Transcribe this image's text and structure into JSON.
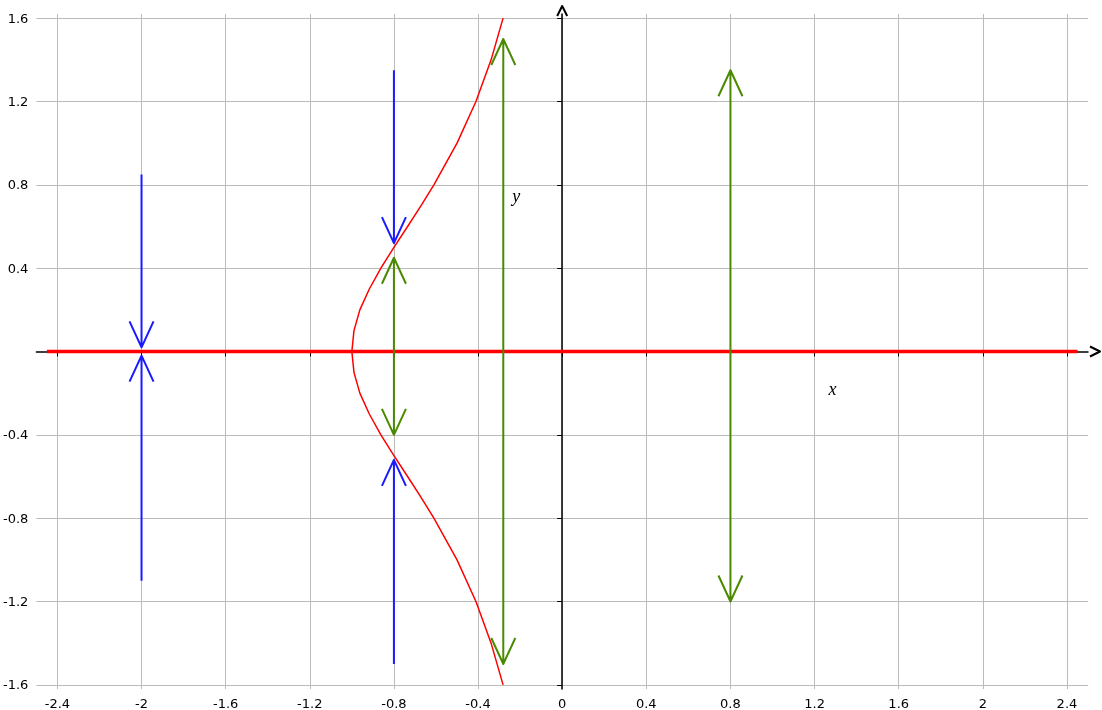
{
  "chart_data": {
    "type": "line",
    "xlabel": "x",
    "ylabel": "y",
    "xlim": [
      -2.5,
      2.5
    ],
    "ylim": [
      -1.62,
      1.62
    ],
    "xticks": [
      -2.4,
      -2,
      -1.6,
      -1.2,
      -0.8,
      -0.4,
      0,
      0.4,
      0.8,
      1.2,
      1.6,
      2,
      2.4
    ],
    "yticks": [
      -1.6,
      -1.2,
      -0.8,
      -0.4,
      0.4,
      0.8,
      1.2,
      1.6
    ],
    "grid": true,
    "series": [
      {
        "color": "#ff0000",
        "x": [
          -0.281,
          -0.338,
          -0.41,
          -0.5,
          -0.61,
          -0.671,
          -0.735,
          -0.8,
          -0.862,
          -0.917,
          -0.962,
          -0.99,
          -1,
          -0.99,
          -0.962,
          -0.917,
          -0.862,
          -0.8,
          -0.735,
          -0.671,
          -0.61,
          -0.5,
          -0.41,
          -0.338,
          -0.281
        ],
        "values": [
          -1.6,
          -1.4,
          -1.2,
          -1,
          -0.8,
          -0.7,
          -0.6,
          -0.5,
          -0.4,
          -0.3,
          -0.2,
          -0.1,
          0,
          0.1,
          0.2,
          0.3,
          0.4,
          0.5,
          0.6,
          0.7,
          0.8,
          1,
          1.2,
          1.4,
          1.6
        ]
      },
      {
        "color": "#ff0000",
        "x": [
          -2.45,
          2.45
        ],
        "values": [
          0,
          0
        ]
      }
    ]
  }
}
